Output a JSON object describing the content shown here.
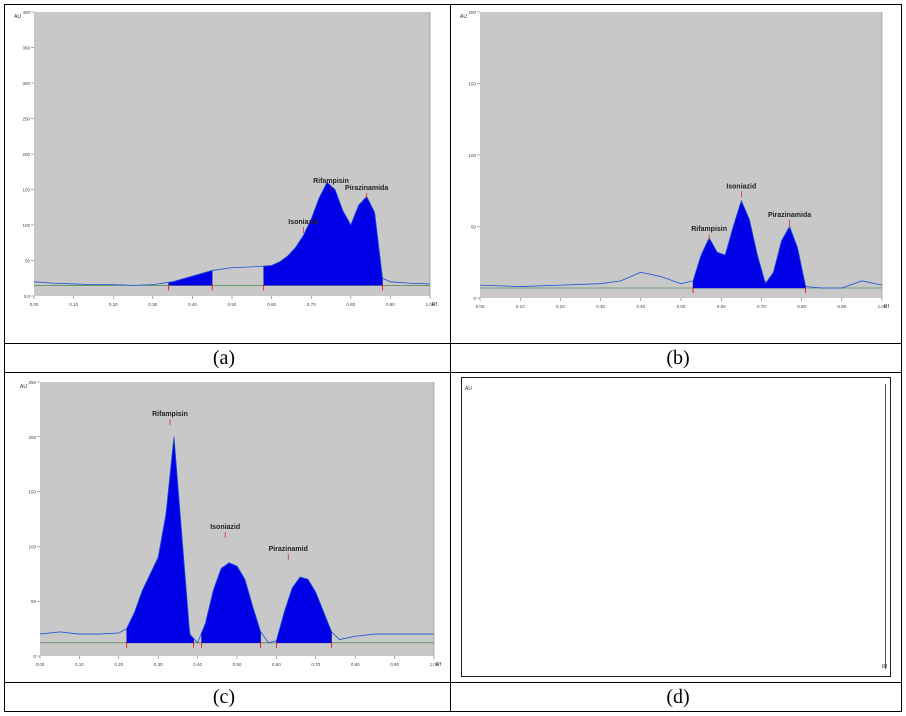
{
  "captions": [
    "(a)",
    "(b)",
    "(c)",
    "(d)"
  ],
  "chart_data": [
    {
      "panel": "(a)",
      "type": "area",
      "ylabel": "AU",
      "xlabel": "Rf",
      "xlim": [
        0.0,
        1.0
      ],
      "ylim": [
        0,
        400
      ],
      "y_ticks": [
        "0.0",
        "50",
        "100",
        "150",
        "200",
        "250",
        "300",
        "350",
        "400"
      ],
      "x_ticks": [
        "0.00",
        "0.10",
        "0.20",
        "0.30",
        "0.40",
        "0.50",
        "0.60",
        "0.70",
        "0.80",
        "0.90",
        "1.00"
      ],
      "peak_labels": [
        {
          "text": "Rifampisin",
          "x": 0.75,
          "y": 158
        },
        {
          "text": "Isoniazid",
          "x": 0.68,
          "y": 100
        },
        {
          "text": "Pirazinamida",
          "x": 0.84,
          "y": 148
        }
      ],
      "series": [
        {
          "x": [
            0.0,
            0.05,
            0.1,
            0.15,
            0.2,
            0.25,
            0.3,
            0.35,
            0.4,
            0.45,
            0.5,
            0.55,
            0.6,
            0.62,
            0.64,
            0.66,
            0.68,
            0.7,
            0.72,
            0.74,
            0.76,
            0.78,
            0.8,
            0.82,
            0.84,
            0.86,
            0.88,
            0.9,
            0.95,
            1.0
          ],
          "y": [
            20,
            18,
            17,
            16,
            16,
            15,
            16,
            20,
            28,
            36,
            40,
            41,
            43,
            48,
            56,
            68,
            85,
            108,
            138,
            160,
            150,
            120,
            100,
            128,
            140,
            118,
            25,
            20,
            18,
            17
          ]
        }
      ],
      "filled_ranges": [
        [
          0.34,
          0.45
        ],
        [
          0.58,
          0.88
        ]
      ]
    },
    {
      "panel": "(b)",
      "type": "area",
      "ylabel": "AU",
      "xlabel": "Rf",
      "xlim": [
        0.0,
        1.0
      ],
      "ylim": [
        0,
        200
      ],
      "y_ticks": [
        "0",
        "50",
        "100",
        "150",
        "200"
      ],
      "x_ticks": [
        "0.00",
        "0.10",
        "0.20",
        "0.30",
        "0.40",
        "0.50",
        "0.60",
        "0.70",
        "0.80",
        "0.90",
        "1.00"
      ],
      "peak_labels": [
        {
          "text": "Rifampisin",
          "x": 0.57,
          "y": 46
        },
        {
          "text": "Isoniazid",
          "x": 0.65,
          "y": 76
        },
        {
          "text": "Pirazinamida",
          "x": 0.77,
          "y": 56
        }
      ],
      "series": [
        {
          "x": [
            0.0,
            0.1,
            0.2,
            0.3,
            0.35,
            0.4,
            0.45,
            0.5,
            0.53,
            0.55,
            0.57,
            0.59,
            0.61,
            0.63,
            0.65,
            0.67,
            0.69,
            0.71,
            0.73,
            0.75,
            0.77,
            0.79,
            0.81,
            0.85,
            0.9,
            0.95,
            1.0
          ],
          "y": [
            9,
            8,
            9,
            10,
            12,
            18,
            15,
            10,
            12,
            30,
            42,
            32,
            30,
            50,
            68,
            55,
            30,
            10,
            18,
            40,
            50,
            35,
            8,
            7,
            7,
            12,
            9
          ]
        }
      ],
      "filled_ranges": [
        [
          0.53,
          0.81
        ]
      ]
    },
    {
      "panel": "(c)",
      "type": "area",
      "ylabel": "AU",
      "xlabel": "Rf",
      "xlim": [
        0.0,
        1.0
      ],
      "ylim": [
        0,
        250
      ],
      "y_ticks": [
        "0",
        "50",
        "100",
        "150",
        "200",
        "250"
      ],
      "x_ticks": [
        "0.00",
        "0.10",
        "0.20",
        "0.30",
        "0.40",
        "0.50",
        "0.60",
        "0.70",
        "0.80",
        "0.90",
        "1.00"
      ],
      "peak_labels": [
        {
          "text": "Rifampisin",
          "x": 0.33,
          "y": 218
        },
        {
          "text": "Isoniazid",
          "x": 0.47,
          "y": 115
        },
        {
          "text": "Pirazinamid",
          "x": 0.63,
          "y": 95
        }
      ],
      "series": [
        {
          "x": [
            0.0,
            0.05,
            0.1,
            0.15,
            0.2,
            0.22,
            0.24,
            0.26,
            0.28,
            0.3,
            0.32,
            0.34,
            0.36,
            0.38,
            0.4,
            0.42,
            0.44,
            0.46,
            0.48,
            0.5,
            0.52,
            0.54,
            0.56,
            0.58,
            0.6,
            0.62,
            0.64,
            0.66,
            0.68,
            0.7,
            0.72,
            0.74,
            0.76,
            0.8,
            0.85,
            0.9,
            0.95,
            1.0
          ],
          "y": [
            20,
            22,
            20,
            20,
            21,
            25,
            40,
            60,
            75,
            90,
            130,
            200,
            110,
            20,
            12,
            30,
            60,
            80,
            85,
            82,
            70,
            45,
            22,
            12,
            14,
            40,
            62,
            72,
            70,
            58,
            40,
            22,
            15,
            18,
            20,
            20,
            20,
            20
          ]
        }
      ],
      "filled_ranges": [
        [
          0.22,
          0.39
        ],
        [
          0.41,
          0.56
        ],
        [
          0.6,
          0.74
        ]
      ]
    }
  ],
  "panel_d": {
    "label": "AU",
    "xlabel": "Rf"
  }
}
